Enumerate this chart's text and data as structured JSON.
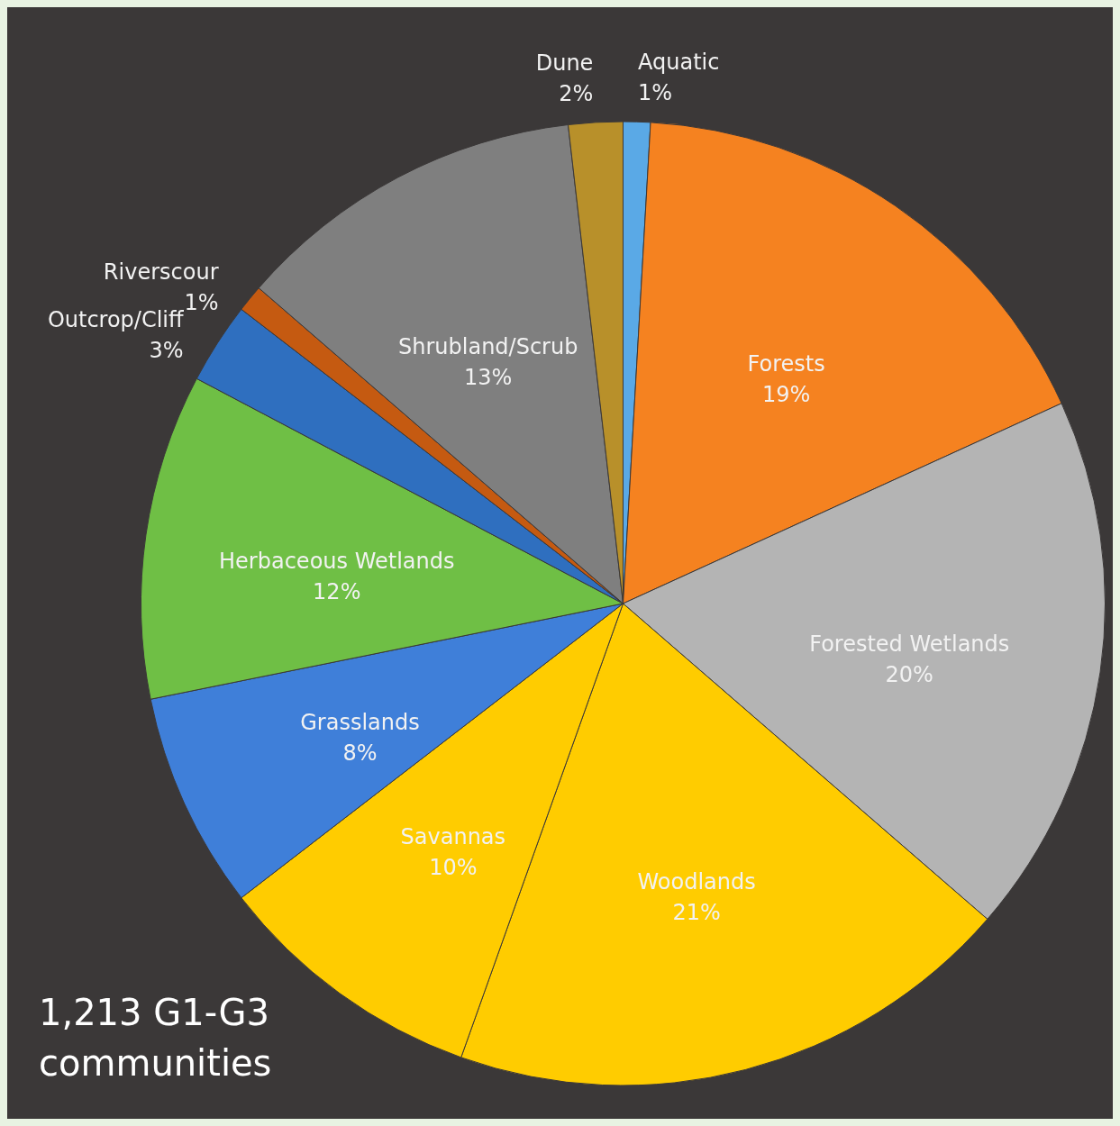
{
  "chart_data": {
    "type": "pie",
    "categories": [
      "Aquatic",
      "Forests",
      "Forested Wetlands",
      "Woodlands",
      "Savannas",
      "Grasslands",
      "Herbaceous Wetlands",
      "Outcrop/Cliff",
      "Riverscour",
      "Shrubland/Scrub",
      "Dune"
    ],
    "values": [
      1,
      19,
      20,
      21,
      10,
      8,
      12,
      3,
      1,
      13,
      2
    ],
    "value_labels": [
      "1%",
      "19%",
      "20%",
      "21%",
      "10%",
      "8%",
      "12%",
      "3%",
      "1%",
      "13%",
      "2%"
    ],
    "colors": [
      "#5aa9e6",
      "#f58220",
      "#b4b4b4",
      "#ffcc00",
      "#ffcc00",
      "#3f7fd9",
      "#6fbf45",
      "#2f6fbf",
      "#c55a11",
      "#7f7f7f",
      "#b8902a"
    ],
    "annotations": [
      "1,213 G1-G3 communities"
    ]
  }
}
